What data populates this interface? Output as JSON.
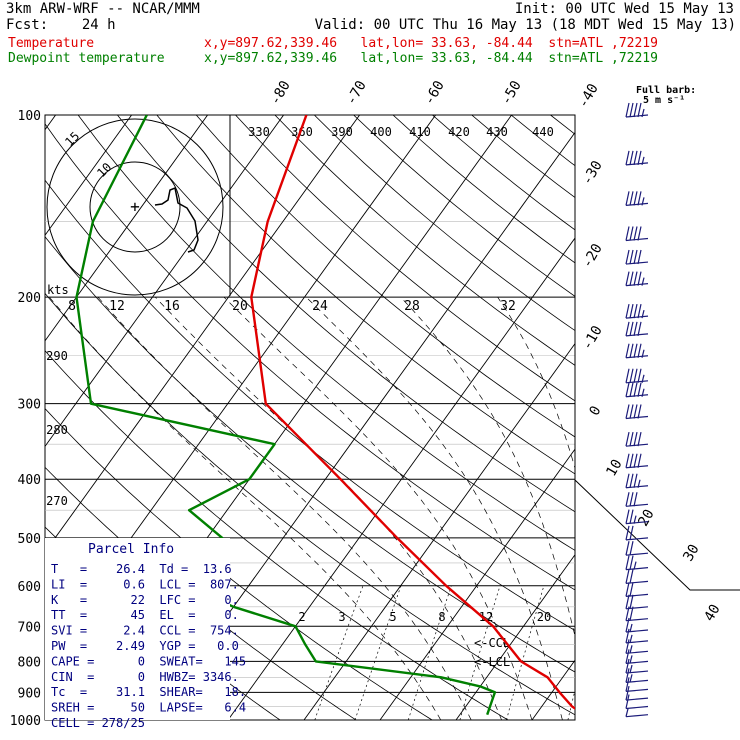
{
  "header": {
    "title": "3km ARW-WRF -- NCAR/MMM",
    "init": "Init: 00 UTC Wed 15 May 13",
    "fcst": "Fcst:    24 h",
    "valid": "Valid: 00 UTC Thu 16 May 13 (18 MDT Wed 15 May 13)",
    "temp_label": "Temperature",
    "temp_info": "x,y=897.62,339.46   lat,lon= 33.63, -84.44  stn=ATL ,72219",
    "dew_label": "Dewpoint temperature",
    "dew_info": "x,y=897.62,339.46   lat,lon= 33.63, -84.44  stn=ATL ,72219",
    "barb_label": "Full barb:",
    "barb_unit": "5 m s⁻¹"
  },
  "colors": {
    "temperature": "#e00000",
    "dewpoint": "#008000",
    "navy": "#000080",
    "barbs": "#1c1c7a"
  },
  "chart_data": {
    "type": "line",
    "pressure_levels": [
      100,
      200,
      300,
      400,
      500,
      600,
      700,
      800,
      900,
      1000
    ],
    "isotherm_labels": [
      "-80",
      "-70",
      "-60",
      "-50",
      "-40",
      "-30",
      "-20",
      "-10",
      "0",
      "10",
      "20",
      "30",
      "40"
    ],
    "theta_labels": [
      "330",
      "360",
      "390",
      "400",
      "410",
      "420",
      "430",
      "440"
    ],
    "theta_left_labels": [
      "290",
      "280",
      "270"
    ],
    "mixing_ratio_labels": [
      "2",
      "3",
      "5",
      "8",
      "12",
      "20"
    ],
    "hodo_speed_labels": [
      "8",
      "12",
      "16",
      "20",
      "24",
      "28",
      "32"
    ],
    "hodo_ring_labels": [
      "15",
      "10"
    ],
    "kts_label": "kts",
    "ccl_label": "<-CCL",
    "lcl_label": "<-LCL",
    "series": [
      {
        "name": "Temperature",
        "p": [
          100,
          150,
          200,
          300,
          400,
          500,
          600,
          700,
          800,
          850,
          900,
          950,
          980
        ],
        "t": [
          -67,
          -62,
          -57,
          -45,
          -28,
          -15,
          -4,
          6,
          13,
          18,
          21,
          24,
          26.4
        ]
      },
      {
        "name": "Dewpoint temperature",
        "p": [
          100,
          150,
          200,
          300,
          350,
          400,
          450,
          500,
          600,
          650,
          700,
          750,
          800,
          850,
          880,
          900,
          950,
          980
        ],
        "t": [
          -88,
          -85,
          -80,
          -68,
          -40,
          -40,
          -45,
          -38,
          -38,
          -30,
          -20,
          -17,
          -14,
          4,
          10,
          12.5,
          13.2,
          13.6
        ]
      }
    ],
    "wind_barbs_kts": [
      {
        "p": 100,
        "spd": 45
      },
      {
        "p": 120,
        "spd": 45
      },
      {
        "p": 140,
        "spd": 45
      },
      {
        "p": 160,
        "spd": 40
      },
      {
        "p": 175,
        "spd": 40
      },
      {
        "p": 190,
        "spd": 45
      },
      {
        "p": 215,
        "spd": 45
      },
      {
        "p": 230,
        "spd": 40
      },
      {
        "p": 250,
        "spd": 45
      },
      {
        "p": 275,
        "spd": 45
      },
      {
        "p": 290,
        "spd": 45
      },
      {
        "p": 315,
        "spd": 40
      },
      {
        "p": 350,
        "spd": 40
      },
      {
        "p": 380,
        "spd": 40
      },
      {
        "p": 410,
        "spd": 35
      },
      {
        "p": 440,
        "spd": 30
      },
      {
        "p": 470,
        "spd": 25
      },
      {
        "p": 500,
        "spd": 20
      },
      {
        "p": 530,
        "spd": 20
      },
      {
        "p": 560,
        "spd": 25
      },
      {
        "p": 590,
        "spd": 20
      },
      {
        "p": 620,
        "spd": 20
      },
      {
        "p": 650,
        "spd": 20
      },
      {
        "p": 680,
        "spd": 20
      },
      {
        "p": 710,
        "spd": 15
      },
      {
        "p": 740,
        "spd": 15
      },
      {
        "p": 770,
        "spd": 15
      },
      {
        "p": 800,
        "spd": 15
      },
      {
        "p": 830,
        "spd": 15
      },
      {
        "p": 860,
        "spd": 15
      },
      {
        "p": 890,
        "spd": 10
      },
      {
        "p": 920,
        "spd": 10
      },
      {
        "p": 950,
        "spd": 10
      },
      {
        "p": 980,
        "spd": 5
      }
    ]
  },
  "parcel": {
    "title": "Parcel Info",
    "rows": [
      "T   =    26.4  Td =  13.6",
      "LI  =     0.6  LCL =  807.",
      "K   =      22  LFC =    0.",
      "TT  =      45  EL  =    0.",
      "SVI =     2.4  CCL =  754.",
      "PW  =    2.49  YGP =   0.0",
      "CAPE =      0  SWEAT=   145",
      "CIN  =      0  HWBZ= 3346.",
      "Tc  =    31.1  SHEAR=   18.",
      "SREH =     50  LAPSE=   6.4",
      "CELL = 278/25"
    ]
  }
}
